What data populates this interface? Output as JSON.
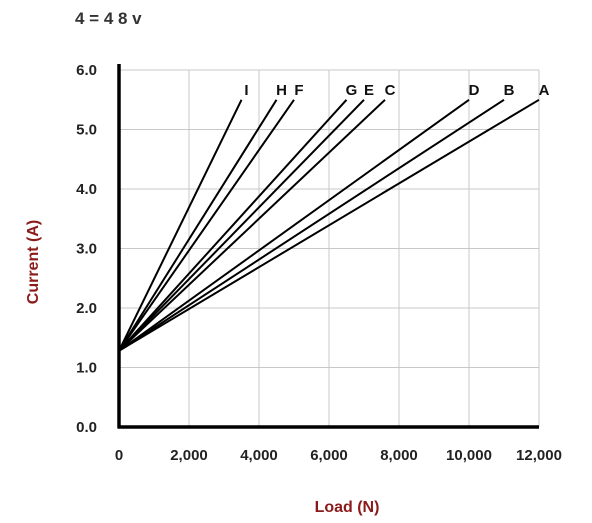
{
  "header": {
    "note": "4 = 4 8 v"
  },
  "chart_data": {
    "type": "line",
    "title": "",
    "xlabel": "Load (N)",
    "ylabel": "Current (A)",
    "xlim": [
      0,
      12000
    ],
    "ylim": [
      0,
      6
    ],
    "x_ticks": [
      0,
      2000,
      4000,
      6000,
      8000,
      10000,
      12000
    ],
    "x_tick_labels": [
      "0",
      "2,000",
      "4,000",
      "6,000",
      "8,000",
      "10,000",
      "12,000"
    ],
    "y_ticks": [
      0,
      1,
      2,
      3,
      4,
      5,
      6
    ],
    "y_tick_labels": [
      "0.0",
      "1.0",
      "2.0",
      "3.0",
      "4.0",
      "5.0",
      "6.0"
    ],
    "grid": true,
    "series": [
      {
        "name": "I",
        "x": [
          0,
          3500
        ],
        "y": [
          1.28,
          5.5
        ]
      },
      {
        "name": "H",
        "x": [
          0,
          4500
        ],
        "y": [
          1.28,
          5.5
        ]
      },
      {
        "name": "F",
        "x": [
          0,
          5000
        ],
        "y": [
          1.28,
          5.5
        ]
      },
      {
        "name": "G",
        "x": [
          0,
          6500
        ],
        "y": [
          1.28,
          5.5
        ]
      },
      {
        "name": "E",
        "x": [
          0,
          7000
        ],
        "y": [
          1.28,
          5.5
        ]
      },
      {
        "name": "C",
        "x": [
          0,
          7600
        ],
        "y": [
          1.28,
          5.5
        ]
      },
      {
        "name": "D",
        "x": [
          0,
          10000
        ],
        "y": [
          1.28,
          5.5
        ]
      },
      {
        "name": "B",
        "x": [
          0,
          11000
        ],
        "y": [
          1.28,
          5.5
        ]
      },
      {
        "name": "A",
        "x": [
          0,
          12000
        ],
        "y": [
          1.28,
          5.5
        ]
      }
    ]
  },
  "colors": {
    "axis_title": "#8b1a1a",
    "line": "#000000",
    "grid": "#c8c8c8",
    "axis": "#000000"
  }
}
